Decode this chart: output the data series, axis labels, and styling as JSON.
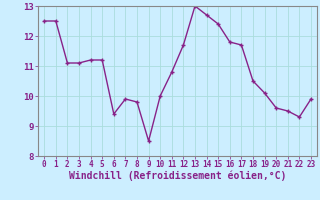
{
  "x": [
    0,
    1,
    2,
    3,
    4,
    5,
    6,
    7,
    8,
    9,
    10,
    11,
    12,
    13,
    14,
    15,
    16,
    17,
    18,
    19,
    20,
    21,
    22,
    23
  ],
  "y": [
    12.5,
    12.5,
    11.1,
    11.1,
    11.2,
    11.2,
    9.4,
    9.9,
    9.8,
    8.5,
    10.0,
    10.8,
    11.7,
    13.0,
    12.7,
    12.4,
    11.8,
    11.7,
    10.5,
    10.1,
    9.6,
    9.5,
    9.3,
    9.9
  ],
  "line_color": "#882288",
  "marker_color": "#882288",
  "bg_color": "#cceeff",
  "grid_color": "#aadddd",
  "xlabel": "Windchill (Refroidissement éolien,°C)",
  "xlabel_color": "#882288",
  "ylim": [
    8,
    13
  ],
  "xlim": [
    -0.5,
    23.5
  ],
  "yticks": [
    8,
    9,
    10,
    11,
    12,
    13
  ],
  "xticks": [
    0,
    1,
    2,
    3,
    4,
    5,
    6,
    7,
    8,
    9,
    10,
    11,
    12,
    13,
    14,
    15,
    16,
    17,
    18,
    19,
    20,
    21,
    22,
    23
  ],
  "tick_color": "#882288",
  "spine_color": "#888888",
  "linewidth": 1.0,
  "markersize": 3.5
}
